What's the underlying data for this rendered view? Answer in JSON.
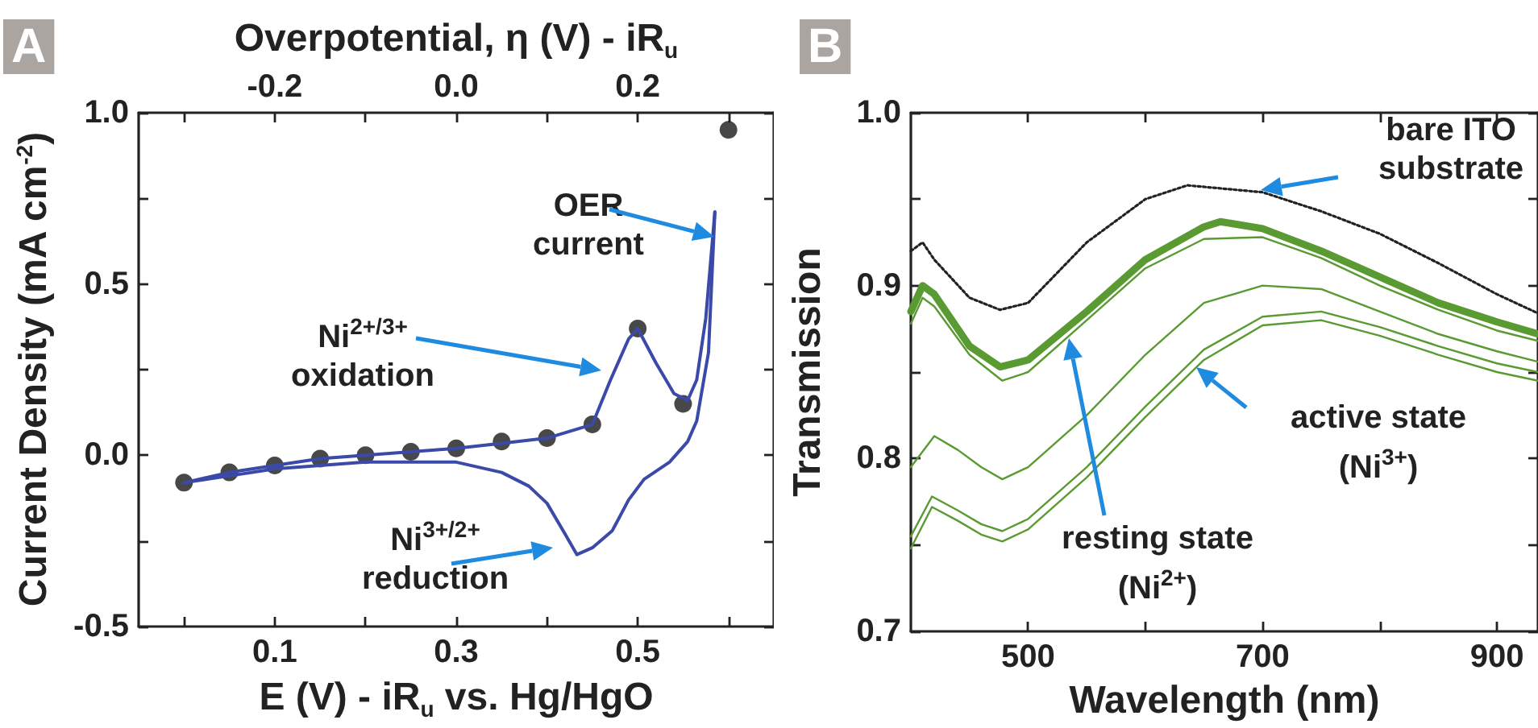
{
  "chart_data": [
    {
      "type": "line",
      "title": "A",
      "xlabel": "E (V) - iR$_{u}$ vs. Hg/HgO",
      "ylabel": "Current Density (mA cm$^{-2}$)",
      "x2label": "Overpotential, η (V) - iR$_{u}$",
      "xlim": [
        -0.05,
        0.65
      ],
      "xticks": [
        {
          "value": 0.0,
          "label": null
        },
        0.1,
        {
          "value": 0.2,
          "label": null
        },
        0.3,
        {
          "value": 0.4,
          "label": null
        },
        0.5,
        {
          "value": 0.6,
          "label": null
        }
      ],
      "x2lim": [
        -0.35,
        0.35
      ],
      "x2ticks": [
        {
          "value": -0.3,
          "label": null
        },
        -0.2,
        {
          "value": -0.1,
          "label": null
        },
        {
          "value": 0.0,
          "label": "0.0"
        },
        {
          "value": 0.1,
          "label": null
        },
        0.2,
        {
          "value": 0.3,
          "label": null
        }
      ],
      "ylim": [
        -0.5,
        1.0
      ],
      "yticks": [
        {
          "value": -0.5,
          "label": "-0.5"
        },
        {
          "value": -0.25,
          "label": null
        },
        {
          "value": 0.0,
          "label": "0.0"
        },
        {
          "value": 0.25,
          "label": null
        },
        0.5,
        {
          "value": 0.75,
          "label": null
        },
        {
          "value": 1.0,
          "label": "1.0"
        }
      ],
      "series": [
        {
          "color": "#3b4aa8",
          "x": [
            0.0,
            0.05,
            0.1,
            0.15,
            0.2,
            0.25,
            0.3,
            0.35,
            0.4,
            0.45,
            0.47,
            0.49,
            0.5,
            0.52,
            0.54,
            0.555,
            0.565,
            0.575,
            0.585
          ],
          "values": [
            -0.08,
            -0.05,
            -0.03,
            -0.01,
            0.0,
            0.01,
            0.02,
            0.035,
            0.05,
            0.09,
            0.22,
            0.34,
            0.37,
            0.27,
            0.18,
            0.16,
            0.22,
            0.4,
            0.71
          ]
        },
        {
          "color": "#3b4aa8",
          "x": [
            0.0,
            0.05,
            0.1,
            0.2,
            0.25,
            0.3,
            0.35,
            0.38,
            0.4,
            0.42,
            0.433,
            0.45,
            0.472,
            0.49,
            0.507,
            0.535,
            0.555,
            0.565,
            0.578,
            0.585
          ],
          "values": [
            -0.08,
            -0.06,
            -0.04,
            -0.02,
            -0.02,
            -0.02,
            -0.05,
            -0.09,
            -0.14,
            -0.23,
            -0.29,
            -0.27,
            -0.22,
            -0.13,
            -0.07,
            -0.02,
            0.04,
            0.1,
            0.3,
            0.71
          ]
        },
        {
          "type": "scatter",
          "color": "#1a1a1a",
          "x": [
            0.0,
            0.05,
            0.1,
            0.15,
            0.2,
            0.25,
            0.3,
            0.35,
            0.4,
            0.45,
            0.5,
            0.55,
            0.6
          ],
          "values": [
            -0.08,
            -0.05,
            -0.03,
            -0.01,
            0.0,
            0.01,
            0.02,
            0.04,
            0.05,
            0.09,
            0.37,
            0.15,
            0.95
          ]
        }
      ],
      "annotations": [
        "OER\ncurrent",
        "Ni$^{2+/3+}$\noxidation",
        "Ni$^{3+/2+}$\nreduction"
      ]
    },
    {
      "type": "line",
      "title": "B",
      "xlabel": "Wavelength (nm)",
      "ylabel": "Transmission",
      "xlim": [
        400,
        935
      ],
      "xticks": [
        500,
        {
          "value": 600,
          "label": null
        },
        700,
        {
          "value": 800,
          "label": null
        },
        900
      ],
      "ylim": [
        0.7,
        1.0
      ],
      "yticks": [
        {
          "value": 0.7,
          "label": "0.7"
        },
        {
          "value": 0.75,
          "label": null
        },
        0.8,
        {
          "value": 0.85,
          "label": null
        },
        0.9,
        {
          "value": 0.95,
          "label": null
        },
        {
          "value": 1.0,
          "label": "1.0"
        }
      ],
      "series": [
        {
          "color": "#222222",
          "line_style": "dotted",
          "x": [
            400,
            410,
            420,
            450,
            476,
            500,
            550,
            600,
            636,
            700,
            750,
            800,
            850,
            900,
            935
          ],
          "values": [
            0.92,
            0.925,
            0.915,
            0.893,
            0.886,
            0.89,
            0.925,
            0.95,
            0.958,
            0.954,
            0.943,
            0.93,
            0.913,
            0.895,
            0.884
          ]
        },
        {
          "color": "#5a9a32",
          "x": [
            400,
            410,
            420,
            450,
            476,
            500,
            550,
            600,
            650,
            664,
            700,
            750,
            800,
            850,
            900,
            935
          ],
          "values": [
            0.885,
            0.9,
            0.895,
            0.865,
            0.853,
            0.857,
            0.885,
            0.915,
            0.934,
            0.937,
            0.933,
            0.92,
            0.905,
            0.89,
            0.879,
            0.872
          ]
        },
        {
          "color": "#5a9a32",
          "x": [
            400,
            410,
            420,
            450,
            478,
            500,
            550,
            600,
            650,
            700,
            750,
            800,
            850,
            900,
            935
          ],
          "values": [
            0.878,
            0.893,
            0.888,
            0.86,
            0.845,
            0.85,
            0.88,
            0.91,
            0.927,
            0.928,
            0.916,
            0.9,
            0.886,
            0.874,
            0.868
          ]
        },
        {
          "color": "#5a9a32",
          "x": [
            400,
            420,
            440,
            460,
            478,
            500,
            550,
            600,
            650,
            700,
            750,
            800,
            850,
            900,
            935
          ],
          "values": [
            0.795,
            0.813,
            0.805,
            0.795,
            0.788,
            0.795,
            0.825,
            0.86,
            0.89,
            0.9,
            0.898,
            0.885,
            0.872,
            0.862,
            0.856
          ]
        },
        {
          "color": "#5a9a32",
          "x": [
            400,
            418,
            440,
            460,
            478,
            500,
            550,
            600,
            650,
            700,
            750,
            800,
            850,
            900,
            935
          ],
          "values": [
            0.755,
            0.778,
            0.77,
            0.762,
            0.758,
            0.765,
            0.795,
            0.83,
            0.863,
            0.882,
            0.885,
            0.876,
            0.865,
            0.855,
            0.85
          ]
        },
        {
          "color": "#5a9a32",
          "x": [
            400,
            418,
            440,
            460,
            478,
            500,
            550,
            600,
            650,
            700,
            750,
            800,
            850,
            900,
            935
          ],
          "values": [
            0.748,
            0.772,
            0.764,
            0.756,
            0.752,
            0.759,
            0.789,
            0.824,
            0.857,
            0.877,
            0.88,
            0.871,
            0.86,
            0.85,
            0.845
          ]
        }
      ],
      "annotations": [
        "bare ITO\nsubstrate",
        "resting state\n(Ni$^{2+}$)",
        "active state\n(Ni$^{3+}$)"
      ]
    }
  ]
}
